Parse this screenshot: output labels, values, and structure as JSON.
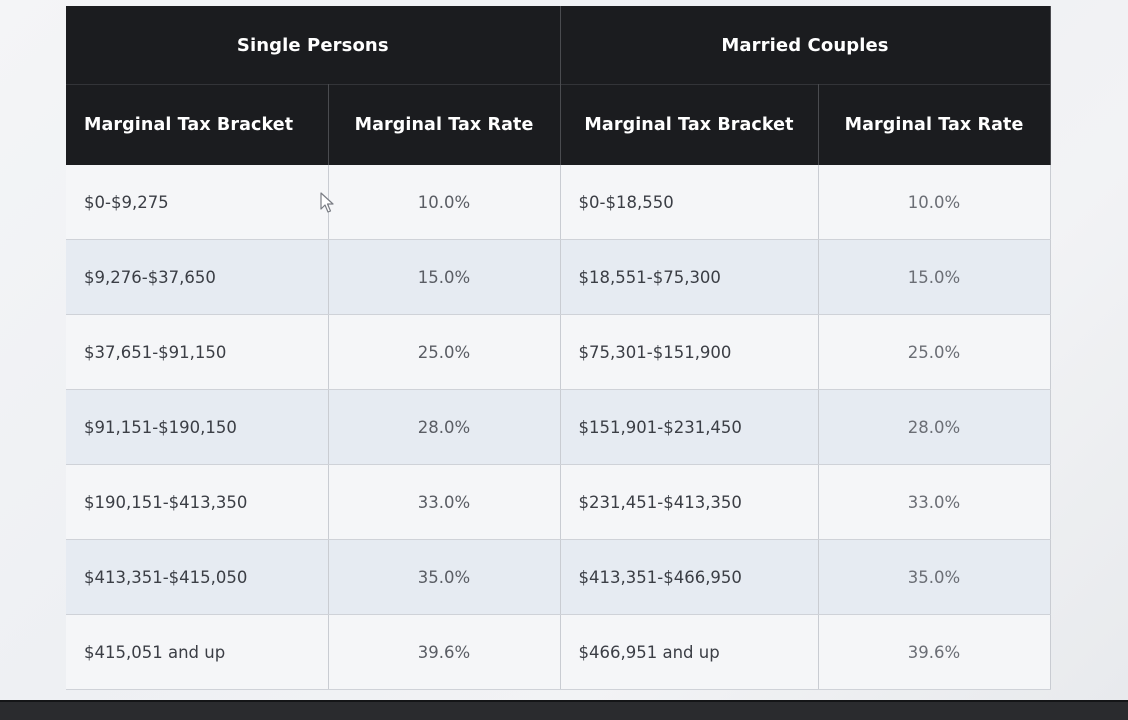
{
  "table": {
    "groups": {
      "single": "Single Persons",
      "married": "Married Couples"
    },
    "headers": {
      "single_bracket": "Marginal Tax Bracket",
      "single_rate": "Marginal Tax Rate",
      "married_bracket": "Marginal Tax Bracket",
      "married_rate": "Marginal Tax Rate"
    },
    "rows": [
      {
        "single_bracket": "$0-$9,275",
        "single_rate": "10.0%",
        "married_bracket": "$0-$18,550",
        "married_rate": "10.0%"
      },
      {
        "single_bracket": "$9,276-$37,650",
        "single_rate": "15.0%",
        "married_bracket": "$18,551-$75,300",
        "married_rate": "15.0%"
      },
      {
        "single_bracket": "$37,651-$91,150",
        "single_rate": "25.0%",
        "married_bracket": "$75,301-$151,900",
        "married_rate": "25.0%"
      },
      {
        "single_bracket": "$91,151-$190,150",
        "single_rate": "28.0%",
        "married_bracket": "$151,901-$231,450",
        "married_rate": "28.0%"
      },
      {
        "single_bracket": "$190,151-$413,350",
        "single_rate": "33.0%",
        "married_bracket": "$231,451-$413,350",
        "married_rate": "33.0%"
      },
      {
        "single_bracket": "$413,351-$415,050",
        "single_rate": "35.0%",
        "married_bracket": "$413,351-$466,950",
        "married_rate": "35.0%"
      },
      {
        "single_bracket": "$415,051 and up",
        "single_rate": "39.6%",
        "married_bracket": "$466,951 and up",
        "married_rate": "39.6%"
      }
    ]
  },
  "colors": {
    "header_bg": "#1b1c1f",
    "header_text": "#ffffff",
    "row_alt": "#e6ebf2",
    "row_base": "#f5f6f8"
  },
  "icons": {
    "cursor": "mouse-pointer-icon"
  }
}
